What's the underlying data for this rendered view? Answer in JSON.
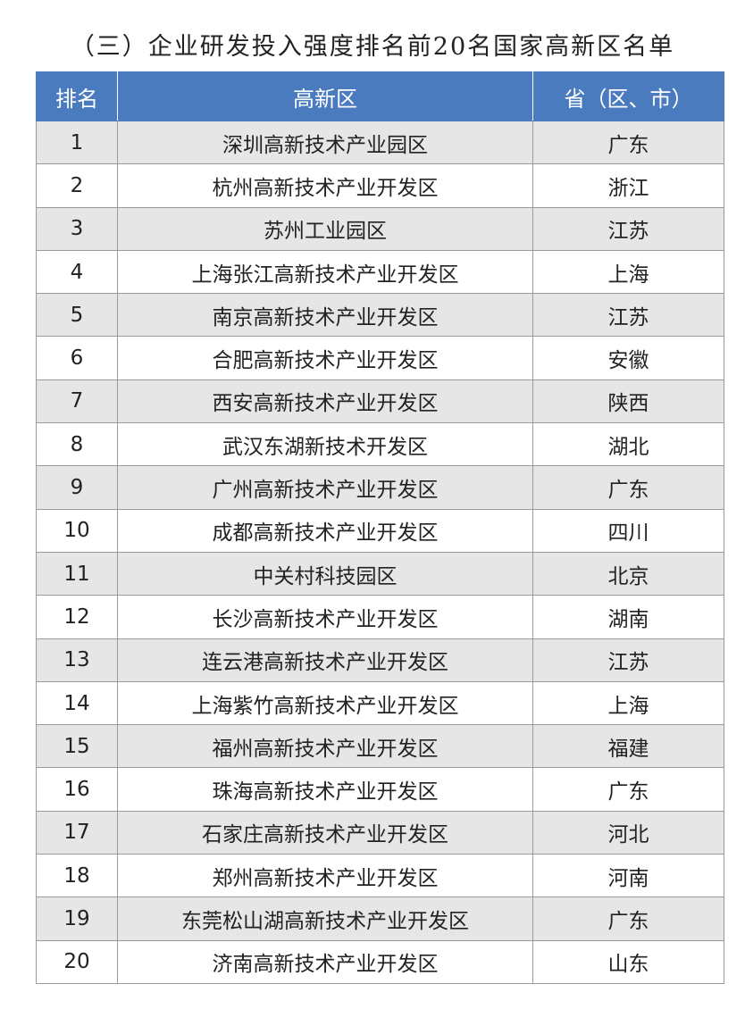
{
  "title": "（三）企业研发投入强度排名前20名国家高新区名单",
  "table": {
    "header": [
      "排名",
      "高新区",
      "省（区、市）"
    ],
    "rows": [
      [
        "1",
        "深圳高新技术产业园区",
        "广东"
      ],
      [
        "2",
        "杭州高新技术产业开发区",
        "浙江"
      ],
      [
        "3",
        "苏州工业园区",
        "江苏"
      ],
      [
        "4",
        "上海张江高新技术产业开发区",
        "上海"
      ],
      [
        "5",
        "南京高新技术产业开发区",
        "江苏"
      ],
      [
        "6",
        "合肥高新技术产业开发区",
        "安徽"
      ],
      [
        "7",
        "西安高新技术产业开发区",
        "陕西"
      ],
      [
        "8",
        "武汉东湖新技术开发区",
        "湖北"
      ],
      [
        "9",
        "广州高新技术产业开发区",
        "广东"
      ],
      [
        "10",
        "成都高新技术产业开发区",
        "四川"
      ],
      [
        "11",
        "中关村科技园区",
        "北京"
      ],
      [
        "12",
        "长沙高新技术产业开发区",
        "湖南"
      ],
      [
        "13",
        "连云港高新技术产业开发区",
        "江苏"
      ],
      [
        "14",
        "上海紫竹高新技术产业开发区",
        "上海"
      ],
      [
        "15",
        "福州高新技术产业开发区",
        "福建"
      ],
      [
        "16",
        "珠海高新技术产业开发区",
        "广东"
      ],
      [
        "17",
        "石家庄高新技术产业开发区",
        "河北"
      ],
      [
        "18",
        "郑州高新技术产业开发区",
        "河南"
      ],
      [
        "19",
        "东莞松山湖高新技术产业开发区",
        "广东"
      ],
      [
        "20",
        "济南高新技术产业开发区",
        "山东"
      ]
    ]
  }
}
